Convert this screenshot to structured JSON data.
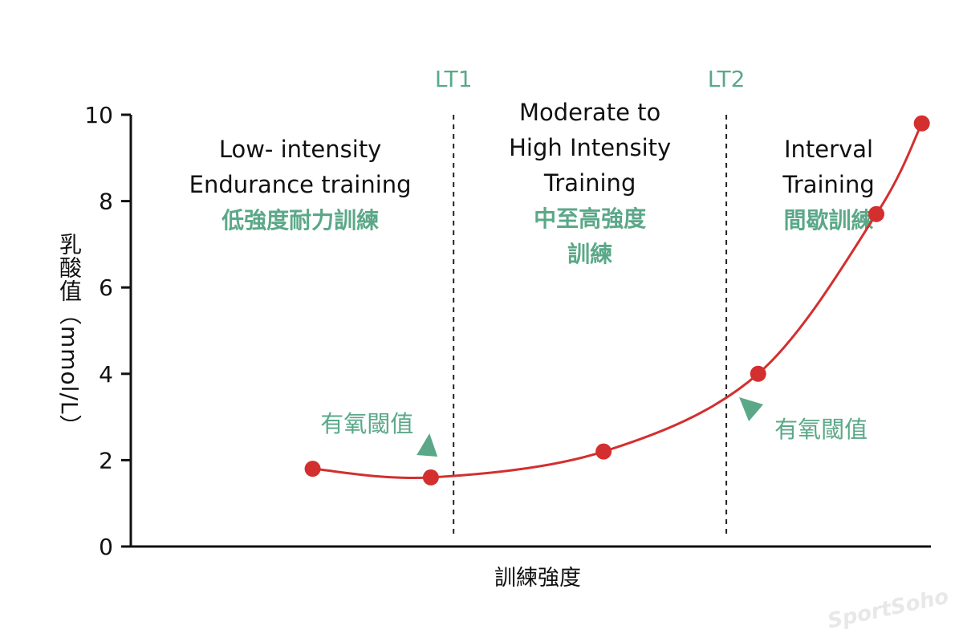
{
  "chart_data": {
    "type": "line",
    "ylabel": "乳酸值（mmol/L）",
    "xlabel": "訓練強度",
    "ylim": [
      0,
      10
    ],
    "yticks": [
      0,
      2,
      4,
      6,
      8,
      10
    ],
    "series": [
      {
        "name": "乳酸值",
        "color": "#d32f2f",
        "points": [
          {
            "x": 1.0,
            "y": 1.8
          },
          {
            "x": 2.3,
            "y": 1.6
          },
          {
            "x": 4.2,
            "y": 2.2
          },
          {
            "x": 5.9,
            "y": 4.0
          },
          {
            "x": 7.2,
            "y": 7.7
          },
          {
            "x": 7.7,
            "y": 9.8
          }
        ]
      }
    ],
    "xlim": [
      -1.0,
      7.8
    ],
    "thresholds": [
      {
        "label": "LT1",
        "x": 2.55
      },
      {
        "label": "LT2",
        "x": 5.55
      }
    ],
    "zones": [
      {
        "en_lines": [
          "Low- intensity",
          "Endurance training"
        ],
        "zh_lines": [
          "低強度耐力訓練"
        ]
      },
      {
        "en_lines": [
          "Moderate to",
          "High Intensity",
          "Training"
        ],
        "zh_lines": [
          "中至高強度",
          "訓練"
        ]
      },
      {
        "en_lines": [
          "Interval",
          "Training"
        ],
        "zh_lines": [
          "間歇訓練"
        ]
      }
    ],
    "annotations": [
      {
        "text": "有氧閾值",
        "target": "LT1"
      },
      {
        "text": "有氧閾值",
        "target": "LT2"
      }
    ]
  },
  "colors": {
    "curve": "#d32f2f",
    "accent": "#5ba888",
    "axis": "#111111"
  },
  "watermark": "SportSoho"
}
